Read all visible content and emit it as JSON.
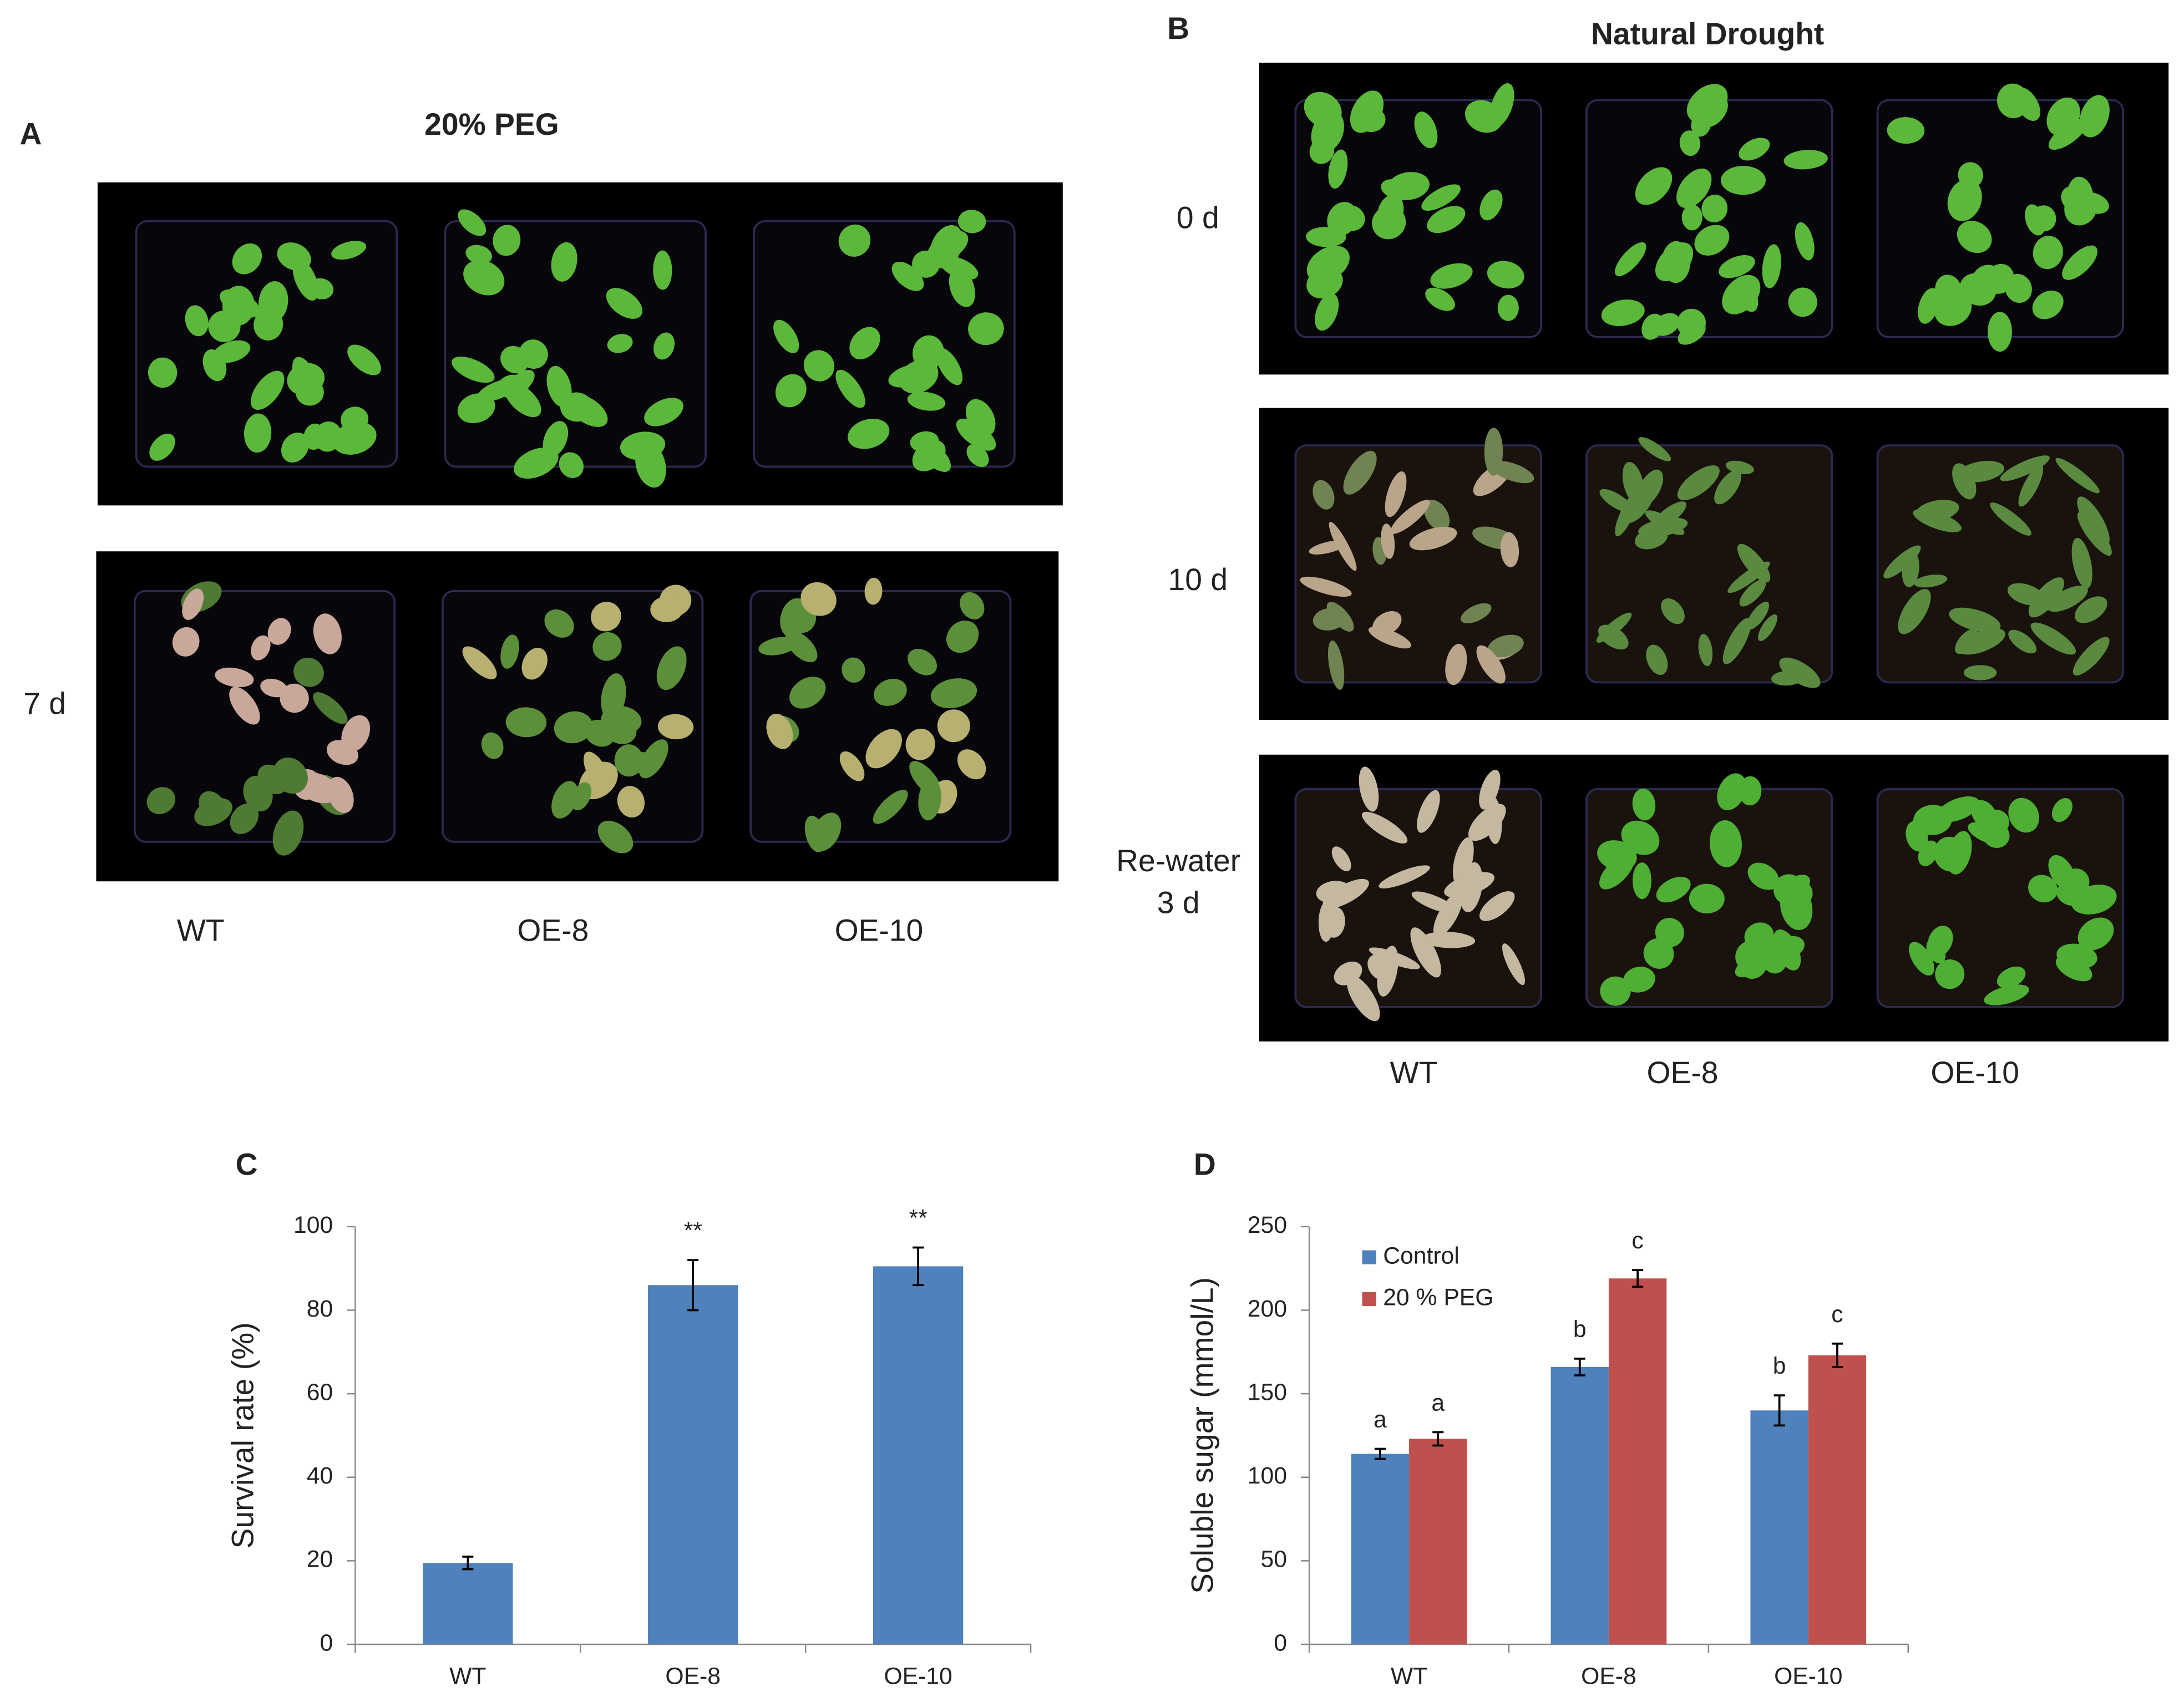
{
  "panels": [
    {
      "letter": "A",
      "title": "20% PEG",
      "row_labels": [
        [
          "7 d"
        ]
      ],
      "columns": [
        "WT",
        "OE-8",
        "OE-10"
      ]
    },
    {
      "letter": "B",
      "title": "Natural Drought",
      "row_labels": [
        [
          "0 d"
        ],
        [
          "10 d"
        ],
        [
          "Re-water",
          "3 d"
        ]
      ],
      "columns": [
        "WT",
        "OE-8",
        "OE-10"
      ]
    }
  ],
  "chart_data": [
    {
      "type": "bar",
      "panel": "C",
      "y_label": "Survival rate (%)",
      "categories": [
        "WT",
        "OE-8",
        "OE-10"
      ],
      "series": [
        {
          "color": "#4f81bd",
          "values": [
            19.5,
            86,
            90.5
          ],
          "errors": [
            1.5,
            6,
            4.5
          ],
          "labels": [
            null,
            "**",
            "**"
          ]
        }
      ],
      "ylim": [
        0,
        100
      ],
      "yticks": [
        0,
        20,
        40,
        60,
        80,
        100
      ]
    },
    {
      "type": "bar",
      "panel": "D",
      "y_label": "Soluble sugar (mmol/L)",
      "categories": [
        "WT",
        "OE-8",
        "OE-10"
      ],
      "series": [
        {
          "name": "Control",
          "color": "#4f81bd",
          "values": [
            114,
            166,
            140
          ],
          "errors": [
            3,
            5,
            9
          ],
          "labels": [
            "a",
            "b",
            "b"
          ]
        },
        {
          "name": "20 % PEG",
          "color": "#c0504d",
          "values": [
            123,
            219,
            173
          ],
          "errors": [
            4,
            5,
            7
          ],
          "labels": [
            "a",
            "c",
            "c"
          ]
        }
      ],
      "ylim": [
        0,
        250
      ],
      "yticks": [
        0,
        50,
        100,
        150,
        200,
        250
      ],
      "legend": "upper left"
    }
  ]
}
